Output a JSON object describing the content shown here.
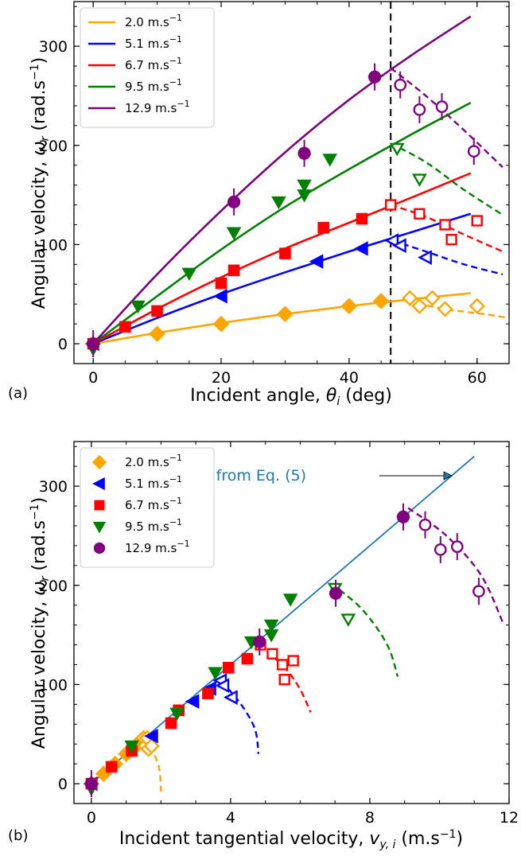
{
  "colors": {
    "orange": "#ffa500",
    "blue": "#0000ff",
    "red": "#ff0000",
    "green": "#008000",
    "purple": "#800080",
    "model_blue": "#1f77b4"
  },
  "chart_data": [
    {
      "panel": "(a)",
      "type": "scatter",
      "xlabel": "Incident angle, θᵢ (deg)",
      "ylabel": "Angular velocity, ωᵣ (rad.s⁻¹)",
      "xlim": [
        -3,
        65
      ],
      "ylim": [
        -20,
        345
      ],
      "xticks": [
        "0",
        "20",
        "40",
        "60"
      ],
      "yticks": [
        "0",
        "100",
        "200",
        "300"
      ],
      "xtick_values": [
        0,
        20,
        40,
        60
      ],
      "ytick_values": [
        0,
        100,
        200,
        300
      ],
      "grid": false,
      "legend_position": "top-left",
      "vline": 46.5,
      "series": [
        {
          "name": "2.0 m.s⁻¹",
          "color": "#ffa500",
          "marker": "diamond",
          "filled": [
            [
              0,
              0
            ],
            [
              10,
              10
            ],
            [
              20,
              20
            ],
            [
              30,
              30
            ],
            [
              40,
              38
            ],
            [
              45,
              43
            ]
          ],
          "open": [
            [
              49.5,
              46
            ],
            [
              51,
              38
            ],
            [
              53,
              46
            ],
            [
              55,
              35
            ],
            [
              60,
              38
            ]
          ],
          "fit": [
            [
              0,
              0
            ],
            [
              10,
              11
            ],
            [
              20,
              21
            ],
            [
              30,
              30
            ],
            [
              40,
              38
            ],
            [
              50,
              45
            ],
            [
              59,
              51
            ]
          ],
          "drop": [
            [
              49,
              43
            ],
            [
              55,
              35
            ],
            [
              61,
              30
            ],
            [
              65,
              26
            ]
          ]
        },
        {
          "name": "5.1 m.s⁻¹",
          "color": "#0000ff",
          "marker": "triangle-left",
          "filled": [
            [
              0,
              0
            ],
            [
              20,
              48
            ],
            [
              35,
              83
            ],
            [
              42,
              96
            ]
          ],
          "open": [
            [
              46.8,
              104
            ],
            [
              48,
              99
            ],
            [
              52,
              87
            ]
          ],
          "fit": [
            [
              0,
              0
            ],
            [
              10,
              26
            ],
            [
              20,
              50
            ],
            [
              30,
              72
            ],
            [
              40,
              93
            ],
            [
              50,
              113
            ],
            [
              59,
              131
            ]
          ],
          "drop": [
            [
              46.8,
              104
            ],
            [
              52,
              93
            ],
            [
              58,
              80
            ],
            [
              64,
              70
            ]
          ]
        },
        {
          "name": "6.7 m.s⁻¹",
          "color": "#ff0000",
          "marker": "square",
          "filled": [
            [
              0,
              0
            ],
            [
              5,
              17
            ],
            [
              10,
              33
            ],
            [
              20,
              61
            ],
            [
              22,
              74
            ],
            [
              30,
              91
            ],
            [
              36,
              117
            ],
            [
              42,
              126
            ]
          ],
          "open": [
            [
              46.5,
              140
            ],
            [
              51,
              131
            ],
            [
              55,
              120
            ],
            [
              56,
              105
            ],
            [
              60,
              124
            ]
          ],
          "fit": [
            [
              0,
              0
            ],
            [
              10,
              35
            ],
            [
              20,
              67
            ],
            [
              30,
              96
            ],
            [
              40,
              122
            ],
            [
              50,
              148
            ],
            [
              59,
              172
            ]
          ],
          "drop": [
            [
              46.5,
              140
            ],
            [
              52,
              128
            ],
            [
              58,
              110
            ],
            [
              64,
              93
            ]
          ]
        },
        {
          "name": "9.5 m.s⁻¹",
          "color": "#008000",
          "marker": "triangle-down",
          "filled": [
            [
              0,
              -5
            ],
            [
              7,
              38
            ],
            [
              15,
              71
            ],
            [
              22,
              112
            ],
            [
              29,
              143
            ],
            [
              33,
              150
            ],
            [
              33,
              160
            ],
            [
              37,
              186
            ]
          ],
          "open": [
            [
              47.5,
              197
            ],
            [
              51,
              166
            ]
          ],
          "fit": [
            [
              0,
              0
            ],
            [
              10,
              48
            ],
            [
              20,
              95
            ],
            [
              30,
              138
            ],
            [
              40,
              176
            ],
            [
              50,
              212
            ],
            [
              59,
              243
            ]
          ],
          "drop": [
            [
              46.5,
              202
            ],
            [
              52,
              183
            ],
            [
              58,
              155
            ],
            [
              64,
              130
            ]
          ]
        },
        {
          "name": "12.9 m.s⁻¹",
          "color": "#800080",
          "marker": "circle",
          "filled": [
            [
              0,
              0
            ],
            [
              22,
              143
            ],
            [
              33,
              192
            ],
            [
              44,
              269
            ]
          ],
          "open": [
            [
              48,
              261
            ],
            [
              51,
              236
            ],
            [
              54.5,
              239
            ],
            [
              59.5,
              194
            ]
          ],
          "fit": [
            [
              0,
              0
            ],
            [
              10,
              70
            ],
            [
              20,
              134
            ],
            [
              30,
              193
            ],
            [
              40,
              246
            ],
            [
              50,
              292
            ],
            [
              59,
              330
            ]
          ],
          "drop": [
            [
              46.5,
              278
            ],
            [
              52,
              250
            ],
            [
              58,
              215
            ],
            [
              64,
              178
            ]
          ]
        }
      ]
    },
    {
      "panel": "(b)",
      "type": "scatter",
      "xlabel": "Incident tangential velocity, vᵧ,ᵢ (m.s⁻¹)",
      "ylabel": "Angular velocity, ωᵣ (rad.s⁻¹)",
      "xlim": [
        -0.5,
        12
      ],
      "ylim": [
        -20,
        345
      ],
      "xticks": [
        "0",
        "4",
        "8",
        "12"
      ],
      "yticks": [
        "0",
        "100",
        "200",
        "300"
      ],
      "xtick_values": [
        0,
        4,
        8,
        12
      ],
      "ytick_values": [
        0,
        100,
        200,
        300
      ],
      "grid": false,
      "legend_position": "top-left",
      "annotation": "from Eq. (5)",
      "model_line": [
        [
          0,
          0
        ],
        [
          11,
          330
        ]
      ],
      "series": [
        {
          "name": "2.0 m.s⁻¹",
          "color": "#ffa500",
          "marker": "diamond",
          "filled": [
            [
              0,
              0
            ],
            [
              0.35,
              10
            ],
            [
              0.68,
              20
            ],
            [
              1.0,
              30
            ],
            [
              1.28,
              38
            ],
            [
              1.41,
              43
            ]
          ],
          "open": [
            [
              1.5,
              46
            ],
            [
              1.55,
              38
            ],
            [
              1.6,
              46
            ],
            [
              1.64,
              35
            ],
            [
              1.73,
              38
            ]
          ],
          "drop": [
            [
              1.5,
              46
            ],
            [
              1.75,
              34
            ],
            [
              1.95,
              15
            ],
            [
              2.0,
              -8
            ]
          ]
        },
        {
          "name": "5.1 m.s⁻¹",
          "color": "#0000ff",
          "marker": "triangle-left",
          "filled": [
            [
              0,
              0
            ],
            [
              1.74,
              48
            ],
            [
              2.92,
              83
            ],
            [
              3.41,
              96
            ]
          ],
          "open": [
            [
              3.72,
              104
            ],
            [
              3.79,
              99
            ],
            [
              4.03,
              87
            ]
          ],
          "drop": [
            [
              3.72,
              104
            ],
            [
              4.3,
              80
            ],
            [
              4.7,
              55
            ],
            [
              4.8,
              30
            ]
          ]
        },
        {
          "name": "6.7 m.s⁻¹",
          "color": "#ff0000",
          "marker": "square",
          "filled": [
            [
              0,
              0
            ],
            [
              0.58,
              17
            ],
            [
              1.16,
              33
            ],
            [
              2.29,
              61
            ],
            [
              2.51,
              74
            ],
            [
              3.35,
              91
            ],
            [
              3.94,
              117
            ],
            [
              4.48,
              126
            ]
          ],
          "open": [
            [
              4.86,
              140
            ],
            [
              5.2,
              131
            ],
            [
              5.49,
              120
            ],
            [
              5.55,
              105
            ],
            [
              5.8,
              124
            ]
          ],
          "drop": [
            [
              4.86,
              140
            ],
            [
              5.6,
              115
            ],
            [
              6.0,
              95
            ],
            [
              6.3,
              72
            ]
          ]
        },
        {
          "name": "9.5 m.s⁻¹",
          "color": "#008000",
          "marker": "triangle-down",
          "filled": [
            [
              0,
              -5
            ],
            [
              1.16,
              38
            ],
            [
              2.46,
              71
            ],
            [
              3.56,
              112
            ],
            [
              4.6,
              143
            ],
            [
              5.17,
              150
            ],
            [
              5.17,
              160
            ],
            [
              5.72,
              186
            ]
          ],
          "open": [
            [
              7.0,
              197
            ],
            [
              7.38,
              166
            ]
          ],
          "drop": [
            [
              6.9,
              202
            ],
            [
              7.8,
              175
            ],
            [
              8.5,
              140
            ],
            [
              8.8,
              108
            ]
          ]
        },
        {
          "name": "12.9 m.s⁻¹",
          "color": "#800080",
          "marker": "circle",
          "filled": [
            [
              0,
              0
            ],
            [
              4.83,
              143
            ],
            [
              7.02,
              192
            ],
            [
              8.96,
              269
            ]
          ],
          "open": [
            [
              9.59,
              261
            ],
            [
              10.03,
              236
            ],
            [
              10.51,
              239
            ],
            [
              11.13,
              194
            ]
          ],
          "drop": [
            [
              9.1,
              278
            ],
            [
              10.2,
              250
            ],
            [
              11.2,
              210
            ],
            [
              11.85,
              160
            ]
          ]
        }
      ]
    }
  ]
}
